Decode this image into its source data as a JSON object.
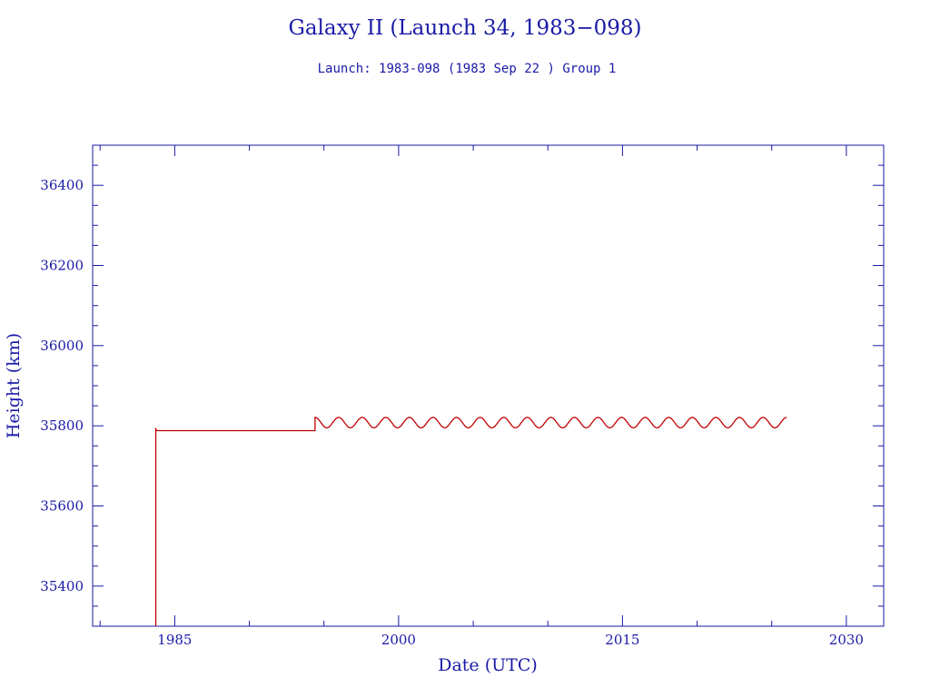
{
  "chart_data": {
    "type": "line",
    "title": "Galaxy II (Launch 34, 1983−098)",
    "subtitle": "Launch: 1983-098  (1983 Sep 22 )  Group 1",
    "xlabel": "Date (UTC)",
    "ylabel": "Height (km)",
    "xlim": [
      1979.5,
      2032.5
    ],
    "ylim": [
      35300,
      36500
    ],
    "x_ticks": [
      1985,
      2000,
      2015,
      2030
    ],
    "x_tick_labels": [
      "1985",
      "2000",
      "2015",
      "2030"
    ],
    "y_ticks": [
      35400,
      35600,
      35800,
      36000,
      36200,
      36400
    ],
    "y_tick_labels": [
      "35400",
      "35600",
      "35800",
      "36000",
      "36200",
      "36400"
    ],
    "grid": false,
    "series": [
      {
        "color": "#c00000",
        "segments": [
          {
            "kind": "step",
            "x": [
              1983.73,
              1983.73,
              1983.8,
              1994.4,
              1994.4
            ],
            "y": [
              35300,
              35792,
              35788,
              35788,
              35820
            ]
          },
          {
            "kind": "oscillation",
            "x_start": 1994.4,
            "x_end": 2026.0,
            "mean": 35808,
            "amplitude": 13,
            "cycles": 20
          }
        ]
      }
    ],
    "colors": {
      "axis": "#1a1aa6",
      "text": "#1a1aa6",
      "line": "#c00000"
    }
  }
}
